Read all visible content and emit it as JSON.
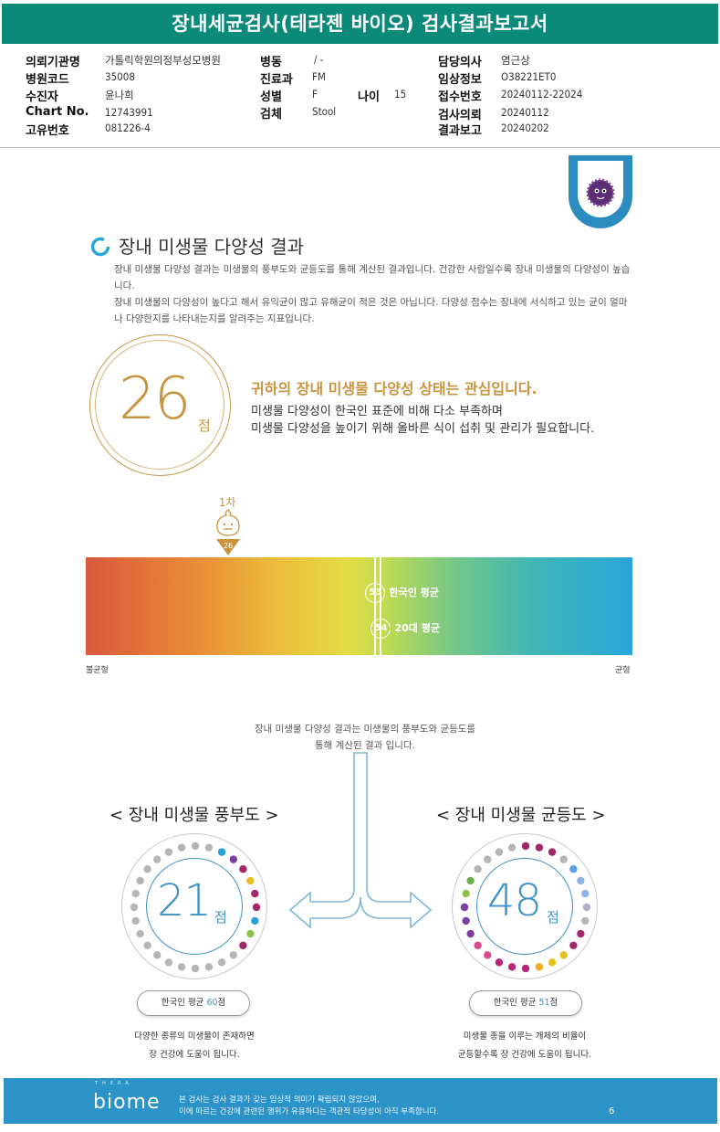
{
  "report": {
    "title": "장내세균검사(테라젠 바이오) 검사결과보고서"
  },
  "patient_info": {
    "institution_label": "의뢰기관명",
    "institution": "가톨릭학원의정부성모병원",
    "hospital_code_label": "병원코드",
    "hospital_code": "35008",
    "subject_label": "수진자",
    "subject": "윤나희",
    "chart_no_label": "Chart No.",
    "chart_no": "12743991",
    "unique_no_label": "고유번호",
    "unique_no": "081226-4",
    "ward_label": "병동",
    "ward": "/ -",
    "dept_label": "진료과",
    "dept": "FM",
    "sex_label": "성별",
    "sex": "F",
    "age_label": "나이",
    "age": "15",
    "specimen_label": "검체",
    "specimen": "Stool",
    "doctor_label": "담당의사",
    "doctor": "염근상",
    "clinical_label": "임상정보",
    "clinical": "O38221ET0",
    "receipt_label": "접수번호",
    "receipt": "20240112-22024",
    "request_label": "검사의뢰",
    "request_date": "20240112",
    "result_label": "결과보고",
    "result_date": "20240202"
  },
  "diversity": {
    "section_title": "장내 미생물 다양성 결과",
    "desc_line1": "장내 미생물 다양성 결과는 미생물의 풍부도와 균등도를 통해 계산된 결과입니다. 건강한 사람일수록 장내 미생물의 다양성이 높습니다.",
    "desc_line2": "장내 미생물의 다양성이 높다고 해서 유익균이 많고 유해균이 적은 것은 아닙니다. 다양성 점수는 장내에 서식하고 있는 균이 얼마나 다양한지를 나타내는지를 알려주는 지표입니다.",
    "score": "26",
    "score_unit": "점",
    "status_headline": "귀하의 장내 미생물 다양성 상태는 관심입니다.",
    "status_line1": "미생물 다양성이 한국인 표준에 비해 다소 부족하며",
    "status_line2": "미생물 다양성을 높이기 위해 올바른 식이 섭취 및 관리가 필요합니다.",
    "marker_round": "1차",
    "marker_value": "26",
    "korean_avg_value": "53",
    "korean_avg_label": "한국인 평균",
    "twenties_avg_value": "54",
    "twenties_avg_label": "20대 평균",
    "bar_left_label": "불균형",
    "bar_right_label": "균형",
    "scale_min": 0,
    "scale_max": 100
  },
  "components": {
    "intro_line1": "장내 미생물 다양성 결과는 미생물의 풍부도와 균등도를",
    "intro_line2": "통해 계산된 결과 입니다.",
    "richness": {
      "title": "< 장내 미생물 풍부도 >",
      "score": "21",
      "unit": "점",
      "avg_prefix": "한국인 평균 ",
      "avg_value": "60",
      "avg_suffix": "점",
      "caption_line1": "다양한 종류의 미생물이 존재하면",
      "caption_line2": "장 건강에 도움이 됩니다."
    },
    "evenness": {
      "title": "< 장내 미생물 균등도 >",
      "score": "48",
      "unit": "점",
      "avg_prefix": "한국인 평균 ",
      "avg_value": "51",
      "avg_suffix": "점",
      "caption_line1": "미생물 종을 이루는 개체의 비율이",
      "caption_line2": "균등할수록 장 건강에 도움이 됩니다."
    }
  },
  "footer": {
    "brand_small": "THERA",
    "brand": "biome",
    "notice_line1": "본 검사는 검사 결과가 갖는 임상적 의미가 확립되지 않았으며,",
    "notice_line2": "이에 따르는 건강에 관련된 행위가 유용하다는 객관적 타당성이 아직 부족합니다.",
    "page": "6"
  },
  "colors": {
    "header_bg": "#0b8a7a",
    "accent_gold": "#c9943f",
    "accent_blue": "#3c92c9",
    "footer_bg": "#2b93c8"
  }
}
